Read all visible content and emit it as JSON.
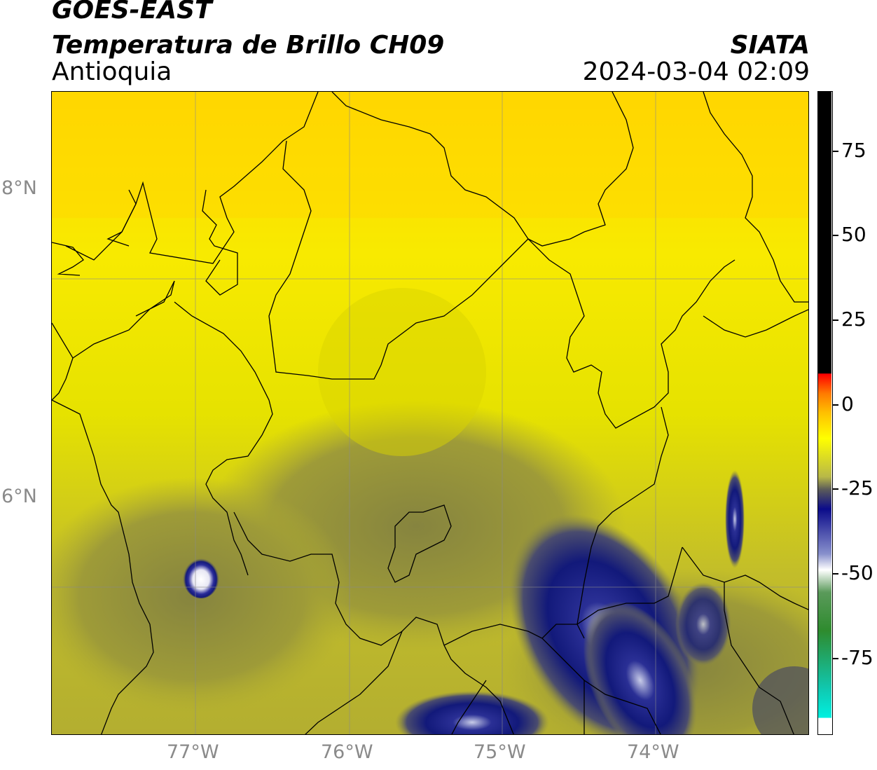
{
  "header": {
    "satellite": "GOES-EAST",
    "product": "Temperatura de Brillo CH09",
    "region": "Antioquia",
    "organization": "SIATA",
    "timestamp": "2024-03-04 02:09"
  },
  "axes": {
    "lat_labels": [
      "8°N",
      "6°N"
    ],
    "lon_labels": [
      "77°W",
      "76°W",
      "75°W",
      "74°W"
    ]
  },
  "colorbar": {
    "tick_labels": [
      "75",
      "50",
      "25",
      "0",
      "-25",
      "-50",
      "-75"
    ],
    "colors": [
      "#000000",
      "#ff0000",
      "#ffaa00",
      "#ffff00",
      "#5a5a5a",
      "#0b0b8a",
      "#ffffff",
      "#2e8b2e",
      "#00e0d0"
    ]
  },
  "map_colors": {
    "warm": "#ffdd00",
    "mid": "#d8d200",
    "olive": "#9c9a38",
    "cold": "#141a7a",
    "coldest": "#ffffff"
  }
}
